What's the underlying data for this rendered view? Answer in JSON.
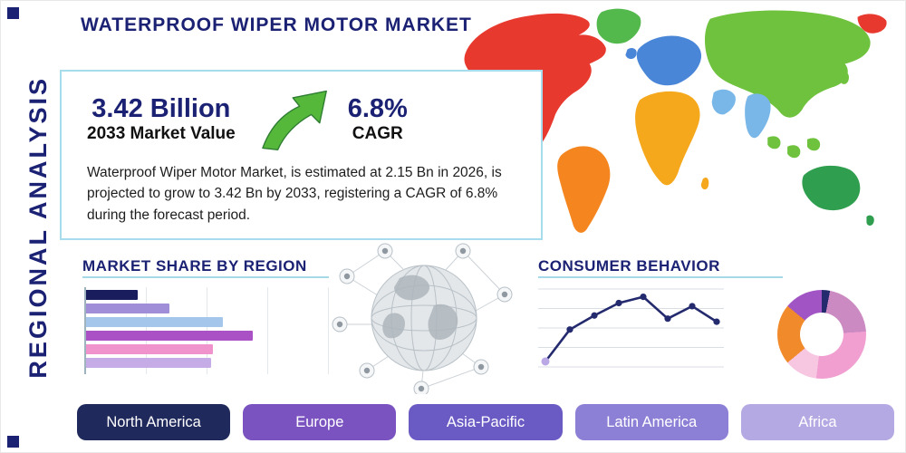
{
  "page": {
    "title": "WATERPROOF WIPER MOTOR MARKET",
    "side_label": "REGIONAL ANALYSIS"
  },
  "summary": {
    "market_value": "3.42 Billion",
    "market_value_label": "2033 Market Value",
    "cagr_value": "6.8%",
    "cagr_label": "CAGR",
    "description": "Waterproof Wiper Motor Market, is estimated at 2.15 Bn in 2026, is projected to grow to 3.42 Bn by 2033, registering a CAGR of 6.8% during the forecast period."
  },
  "sections": {
    "market_share_title": "MARKET SHARE BY REGION",
    "consumer_behavior_title": "CONSUMER BEHAVIOR"
  },
  "regions": [
    {
      "label": "North America",
      "color": "#20295c"
    },
    {
      "label": "Europe",
      "color": "#7b53c1"
    },
    {
      "label": "Asia-Pacific",
      "color": "#6a5ac4"
    },
    {
      "label": "Latin America",
      "color": "#8c7fd6"
    },
    {
      "label": "Africa",
      "color": "#b5a9e3"
    }
  ],
  "theme": {
    "navy": "#1b2173",
    "accent_line": "#a5d9e8",
    "arrow_green": "#55b83a",
    "arrow_green_dark": "#2e7d32"
  },
  "map": {
    "colors": {
      "north-america": "#e8392f",
      "greenland": "#54b94d",
      "south-america": "#f5861f",
      "europe": "#4a86d8",
      "africa": "#f5a81c",
      "asia": "#6fc23d",
      "india": "#79b7e8",
      "se-asia": "#6fc23d",
      "japan": "#6fc23d",
      "australia": "#2f9e4e",
      "new-zealand": "#2f9e4e",
      "chukotka": "#e8392f",
      "uk": "#4a86d8",
      "madagascar": "#f5a81c"
    }
  },
  "chart_data": [
    {
      "type": "bar",
      "title": "Market Share by Region",
      "orientation": "horizontal",
      "categories": [
        "",
        "",
        "",
        "",
        "",
        ""
      ],
      "values": [
        21,
        34,
        56,
        68,
        52,
        51
      ],
      "unit": "percent of chart width (bars unlabeled in image, lengths estimated)",
      "colors": [
        "#191d5e",
        "#a08fd8",
        "#a3c6ea",
        "#ab51c6",
        "#f093cc",
        "#c6ace6"
      ],
      "xlim": [
        0,
        100
      ],
      "grid": "vertical"
    },
    {
      "type": "line",
      "title": "Consumer Behavior",
      "x_note": "8 evenly spaced unlabeled points",
      "values": [
        7,
        48,
        66,
        82,
        90,
        62,
        78,
        58
      ],
      "ylim": [
        0,
        100
      ],
      "line_color": "#242a6e",
      "marker_color": "#242a6e",
      "first_marker_color": "#b9a7e6",
      "grid": "horizontal"
    },
    {
      "type": "pie",
      "variant": "donut",
      "title": "Consumer Behavior share",
      "slices_note": "unlabeled donut, percentages estimated from arc angles, clockwise from 12 o'clock",
      "slices": [
        {
          "color": "#232b6e",
          "value": 3
        },
        {
          "color": "#cb8ac1",
          "value": 21
        },
        {
          "color": "#f19fd1",
          "value": 28
        },
        {
          "color": "#f7c6e0",
          "value": 12
        },
        {
          "color": "#f18a2b",
          "value": 22
        },
        {
          "color": "#a155c5",
          "value": 14
        }
      ]
    }
  ]
}
